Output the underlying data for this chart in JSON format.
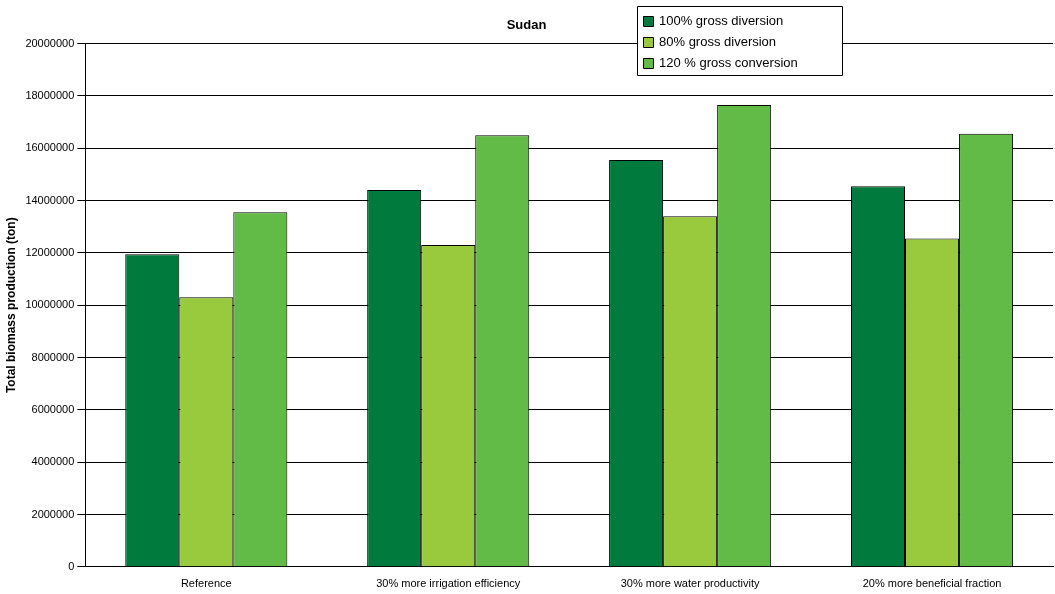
{
  "chart_data": {
    "type": "bar",
    "title": "Sudan",
    "ylabel": "Total biomass production (ton)",
    "categories": [
      "Reference",
      "30% more irrigation efficiency",
      "30% more water productivity",
      "20% more beneficial fraction"
    ],
    "series": [
      {
        "name": "100% gross diversion",
        "color": "#007a3d",
        "values": [
          11950000,
          14400000,
          15550000,
          14550000
        ]
      },
      {
        "name": "80% gross diversion",
        "color": "#99c93c",
        "values": [
          10300000,
          12300000,
          13400000,
          12550000
        ]
      },
      {
        "name": "120 % gross conversion",
        "color": "#62bb46",
        "values": [
          13550000,
          16500000,
          17650000,
          16550000
        ]
      }
    ],
    "ylim": [
      0,
      20000000
    ],
    "yticks": [
      0,
      2000000,
      4000000,
      6000000,
      8000000,
      10000000,
      12000000,
      14000000,
      16000000,
      18000000,
      20000000
    ],
    "grid": "y",
    "legend": "top right"
  }
}
